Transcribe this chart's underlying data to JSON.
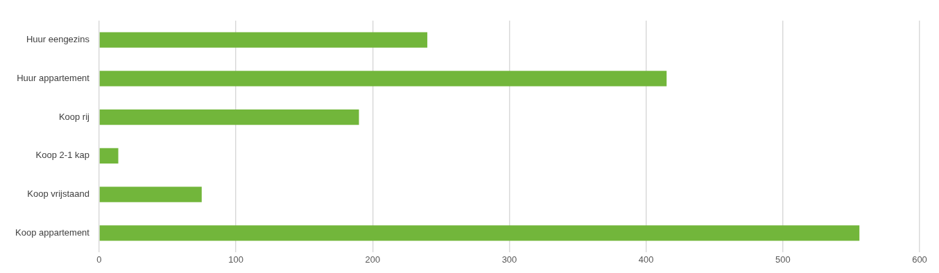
{
  "chart_data": {
    "type": "bar",
    "orientation": "horizontal",
    "categories": [
      "Huur eengezins",
      "Huur appartement",
      "Koop rij",
      "Koop 2-1 kap",
      "Koop vrijstaand",
      "Koop appartement"
    ],
    "values": [
      240,
      415,
      190,
      14,
      75,
      556
    ],
    "color": "#72b63b",
    "xlim": [
      0,
      600
    ],
    "xticks": [
      0,
      100,
      200,
      300,
      400,
      500,
      600
    ],
    "grid": "x",
    "legend": false
  }
}
